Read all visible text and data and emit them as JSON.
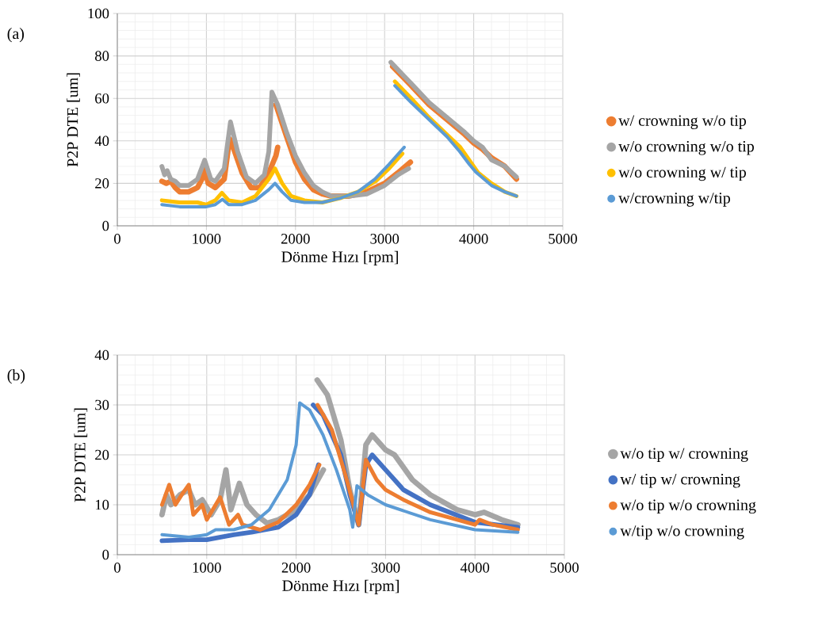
{
  "chart_data": [
    {
      "type": "line",
      "annotations": [
        "(a)"
      ],
      "xlabel": "Dönme Hızı [rpm]",
      "ylabel": "P2P DTE [um]",
      "xlim": [
        0,
        5000
      ],
      "ylim": [
        0,
        100
      ],
      "xticks": [
        0,
        1000,
        2000,
        3000,
        4000,
        5000
      ],
      "yticks": [
        0,
        20,
        40,
        60,
        80,
        100
      ],
      "grid": true,
      "legend": "right",
      "series": [
        {
          "name": "w/ crowning w/o tip",
          "color": "#ed7d31",
          "x": [
            500,
            550,
            600,
            650,
            700,
            800,
            900,
            950,
            980,
            1020,
            1100,
            1200,
            1260,
            1300,
            1400,
            1500,
            1600,
            1700,
            1780,
            1800,
            1790,
            1780,
            1900,
            2000,
            2100,
            2200,
            2300,
            2400,
            2600,
            2800,
            3000,
            3150,
            3290,
            3200,
            3090,
            3300,
            3500,
            3700,
            3900,
            4000,
            4100,
            4200,
            4350,
            4480
          ],
          "values": [
            21,
            20,
            21,
            18,
            16,
            16,
            18,
            22,
            27,
            20,
            18,
            22,
            41,
            37,
            25,
            18,
            18,
            25,
            33,
            37,
            null,
            57,
            42,
            30,
            22,
            17,
            15,
            14,
            14,
            16,
            20,
            25,
            30,
            null,
            75,
            66,
            57,
            50,
            43,
            39,
            36,
            32,
            28,
            22
          ]
        },
        {
          "name": "w/o crowning w/o tip",
          "color": "#a5a5a5",
          "x": [
            500,
            530,
            560,
            600,
            650,
            700,
            800,
            900,
            980,
            1050,
            1100,
            1200,
            1270,
            1350,
            1450,
            1550,
            1650,
            1700,
            1735,
            1800,
            1900,
            2000,
            2100,
            2200,
            2300,
            2400,
            2600,
            2800,
            3000,
            3150,
            3270,
            3200,
            3070,
            3300,
            3500,
            3700,
            3900,
            4000,
            4100,
            4200,
            4350,
            4480
          ],
          "values": [
            28,
            24,
            26,
            22,
            21,
            19,
            19,
            22,
            31,
            22,
            21,
            27,
            49,
            35,
            23,
            20,
            24,
            35,
            63,
            57,
            44,
            33,
            25,
            19,
            16,
            14,
            14,
            15,
            19,
            24,
            27,
            null,
            77,
            67,
            58,
            51,
            44,
            40,
            37,
            31,
            28,
            23
          ]
        },
        {
          "name": "w/o crowning w/ tip",
          "color": "#ffc000",
          "x": [
            500,
            700,
            900,
            1000,
            1100,
            1174,
            1250,
            1400,
            1550,
            1700,
            1770,
            1850,
            1950,
            2100,
            2300,
            2500,
            2700,
            2900,
            3050,
            3200,
            3150,
            3115,
            3300,
            3500,
            3700,
            3850,
            3950,
            4050,
            4200,
            4350,
            4480
          ],
          "values": [
            12,
            11,
            11,
            10,
            12,
            15.5,
            12,
            11,
            14,
            22,
            27,
            20,
            14,
            12,
            11,
            13,
            16,
            21,
            27,
            34,
            null,
            68,
            60,
            51,
            43,
            37,
            31,
            25,
            20,
            16,
            14
          ]
        },
        {
          "name": "w/crowning w/tip",
          "color": "#5b9bd5",
          "x": [
            500,
            700,
            900,
            1000,
            1100,
            1180,
            1250,
            1400,
            1550,
            1700,
            1770,
            1850,
            1950,
            2100,
            2300,
            2500,
            2700,
            2890,
            3050,
            3220,
            3150,
            3115,
            3300,
            3500,
            3700,
            3843,
            3950,
            4020,
            4200,
            4350,
            4480
          ],
          "values": [
            10,
            9,
            9,
            9,
            10,
            12.5,
            10,
            10,
            12,
            17,
            20,
            16,
            12,
            11,
            11,
            13,
            16,
            22,
            29,
            37,
            null,
            66,
            58,
            50,
            42,
            35,
            29,
            25.5,
            19,
            16,
            14
          ]
        }
      ]
    },
    {
      "type": "line",
      "annotations": [
        "(b)"
      ],
      "xlabel": "Dönme Hızı [rpm]",
      "ylabel": "P2P DTE [um]",
      "xlim": [
        0,
        5000
      ],
      "ylim": [
        0,
        40
      ],
      "xticks": [
        0,
        1000,
        2000,
        3000,
        4000,
        5000
      ],
      "yticks": [
        0,
        10,
        20,
        30,
        40
      ],
      "grid": true,
      "legend": "right",
      "series": [
        {
          "name": "w/o tip w/ crowning",
          "color": "#a5a5a5",
          "x": [
            500,
            550,
            600,
            700,
            800,
            870,
            950,
            1050,
            1150,
            1215,
            1270,
            1365,
            1450,
            1550,
            1675,
            1800,
            2000,
            2150,
            2305,
            2270,
            2235,
            2350,
            2500,
            2600,
            2700,
            2780,
            2850,
            3000,
            3100,
            3300,
            3500,
            3800,
            4000,
            4100,
            4300,
            4480
          ],
          "values": [
            8,
            12,
            10,
            12,
            13,
            10,
            11,
            8,
            11,
            17,
            9,
            14.3,
            10,
            8,
            6.3,
            7,
            9,
            12,
            17,
            null,
            35,
            32,
            23,
            13,
            6,
            22,
            24,
            21,
            20,
            15,
            12,
            9,
            8,
            8.5,
            7,
            6
          ]
        },
        {
          "name": "w/ tip w/ crowning",
          "color": "#4472c4",
          "x": [
            500,
            800,
            1000,
            1300,
            1500,
            1800,
            2000,
            2150,
            2250,
            2220,
            2190,
            2300,
            2500,
            2600,
            2700,
            2780,
            2850,
            3000,
            3200,
            3500,
            4000,
            4480
          ],
          "values": [
            2.8,
            3,
            3,
            4,
            4.5,
            5.5,
            8,
            12,
            18,
            null,
            30,
            28,
            20,
            12,
            6,
            18,
            20,
            17,
            13,
            10,
            6.5,
            5.5
          ]
        },
        {
          "name": "w/o tip w/o crowning",
          "color": "#ed7d31",
          "x": [
            500,
            580,
            650,
            720,
            800,
            850,
            950,
            1000,
            1100,
            1150,
            1250,
            1350,
            1400,
            1500,
            1600,
            1800,
            2000,
            2150,
            2260,
            2250,
            2240,
            2400,
            2550,
            2700,
            2780,
            2900,
            3000,
            3200,
            3500,
            4000,
            4050,
            4200,
            4480
          ],
          "values": [
            10,
            14,
            10,
            12,
            14,
            8,
            10,
            7,
            10,
            11.5,
            6,
            8,
            6,
            5.5,
            5,
            6.5,
            10,
            14,
            18,
            null,
            30,
            25,
            16,
            6,
            19,
            15,
            13,
            11,
            8.5,
            6,
            7,
            6,
            5
          ]
        },
        {
          "name": "w/tip w/o crowning",
          "color": "#5b9bd5",
          "x": [
            500,
            800,
            1000,
            1100,
            1300,
            1500,
            1700,
            1900,
            2000,
            2040,
            2150,
            2300,
            2450,
            2600,
            2633,
            2680,
            2800,
            3000,
            3500,
            4000,
            4480
          ],
          "values": [
            4,
            3.5,
            4,
            5,
            5,
            6,
            9,
            15,
            22,
            30.4,
            29,
            24,
            17,
            9,
            5.5,
            13.8,
            12,
            10,
            7,
            5,
            4.5
          ]
        }
      ]
    }
  ]
}
